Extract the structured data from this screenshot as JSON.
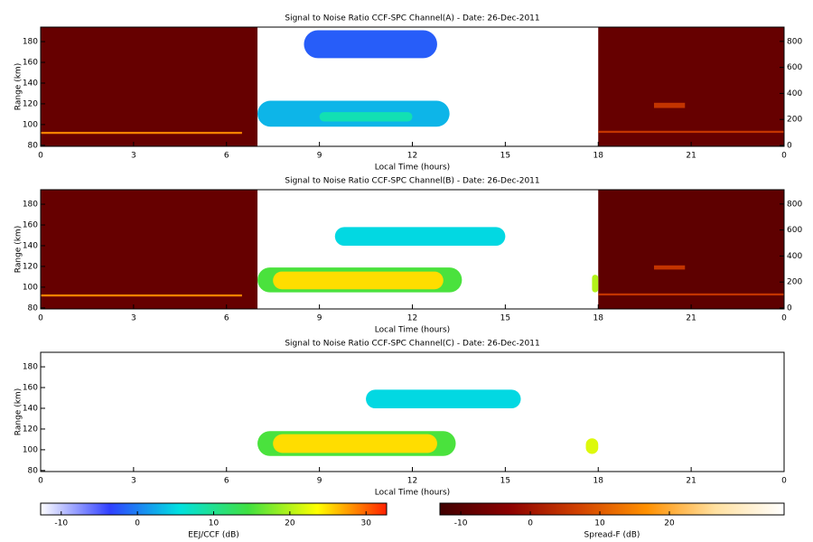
{
  "chart_data": [
    {
      "type": "heatmap",
      "title": "Signal to Noise Ratio CCF-SPC Channel(A) - Date: 26-Dec-2011",
      "x_label": "Local Time (hours)",
      "y_label": "Range (km)",
      "xlim": [
        0,
        24
      ],
      "xticks": [
        0,
        3,
        6,
        9,
        12,
        15,
        18,
        21,
        {
          "value": 24,
          "label": "0"
        }
      ],
      "ylim": [
        79,
        194
      ],
      "yticks": [
        80,
        100,
        120,
        140,
        160,
        180
      ],
      "y2lim": [
        -7,
        910
      ],
      "y2ticks": [
        0,
        200,
        400,
        600,
        800
      ],
      "cells": [
        {
          "x": [
            0,
            7
          ],
          "y": [
            79,
            194
          ],
          "value": -8,
          "scale": "spread_f"
        },
        {
          "x": [
            18,
            24
          ],
          "y": [
            79,
            194
          ],
          "value": -8,
          "scale": "spread_f"
        },
        {
          "x": [
            0,
            6.5
          ],
          "y": [
            91,
            93
          ],
          "value": 15,
          "scale": "spread_f"
        },
        {
          "x": [
            18,
            24
          ],
          "y": [
            92,
            94
          ],
          "value": 5,
          "scale": "spread_f"
        },
        {
          "x": [
            19.8,
            20.8
          ],
          "y": [
            116,
            121
          ],
          "value": 5,
          "scale": "spread_f"
        },
        {
          "x": [
            8.5,
            12.8
          ],
          "y": [
            164,
            191
          ],
          "value": -2,
          "scale": "eej"
        },
        {
          "x": [
            7,
            13.2
          ],
          "y": [
            98,
            123
          ],
          "value": 3,
          "scale": "eej"
        },
        {
          "x": [
            9,
            12
          ],
          "y": [
            103,
            112
          ],
          "value": 8,
          "scale": "eej"
        }
      ]
    },
    {
      "type": "heatmap",
      "title": "Signal to Noise Ratio CCF-SPC Channel(B) - Date: 26-Dec-2011",
      "x_label": "Local Time (hours)",
      "y_label": "Range (km)",
      "xlim": [
        0,
        24
      ],
      "xticks": [
        0,
        3,
        6,
        9,
        12,
        15,
        18,
        21,
        {
          "value": 24,
          "label": "0"
        }
      ],
      "ylim": [
        79,
        194
      ],
      "yticks": [
        80,
        100,
        120,
        140,
        160,
        180
      ],
      "y2lim": [
        -7,
        910
      ],
      "y2ticks": [
        0,
        200,
        400,
        600,
        800
      ],
      "cells": [
        {
          "x": [
            0,
            7
          ],
          "y": [
            79,
            194
          ],
          "value": -8,
          "scale": "spread_f"
        },
        {
          "x": [
            18,
            24
          ],
          "y": [
            79,
            194
          ],
          "value": -9,
          "scale": "spread_f"
        },
        {
          "x": [
            0,
            6.5
          ],
          "y": [
            91,
            93
          ],
          "value": 15,
          "scale": "spread_f"
        },
        {
          "x": [
            18,
            24
          ],
          "y": [
            92,
            94
          ],
          "value": 5,
          "scale": "spread_f"
        },
        {
          "x": [
            19.8,
            20.8
          ],
          "y": [
            117,
            121
          ],
          "value": 5,
          "scale": "spread_f"
        },
        {
          "x": [
            9.5,
            15
          ],
          "y": [
            140,
            158
          ],
          "value": 5,
          "scale": "eej"
        },
        {
          "x": [
            7,
            13.6
          ],
          "y": [
            95,
            119
          ],
          "value": 15,
          "scale": "eej"
        },
        {
          "x": [
            7.5,
            13
          ],
          "y": [
            98,
            115
          ],
          "value": 25,
          "scale": "eej"
        },
        {
          "x": [
            17.8,
            18
          ],
          "y": [
            95,
            112
          ],
          "value": 20,
          "scale": "eej"
        }
      ]
    },
    {
      "type": "heatmap",
      "title": "Signal to Noise Ratio CCF-SPC Channel(C) - Date: 26-Dec-2011",
      "x_label": "Local Time (hours)",
      "y_label": "Range (km)",
      "xlim": [
        0,
        24
      ],
      "xticks": [
        0,
        3,
        6,
        9,
        12,
        15,
        18,
        21,
        {
          "value": 24,
          "label": "0"
        }
      ],
      "ylim": [
        79,
        194
      ],
      "yticks": [
        80,
        100,
        120,
        140,
        160,
        180
      ],
      "cells": [
        {
          "x": [
            10.5,
            15.5
          ],
          "y": [
            140,
            158
          ],
          "value": 5,
          "scale": "eej"
        },
        {
          "x": [
            7,
            13.4
          ],
          "y": [
            94,
            118
          ],
          "value": 15,
          "scale": "eej"
        },
        {
          "x": [
            7.5,
            12.8
          ],
          "y": [
            97,
            115
          ],
          "value": 25,
          "scale": "eej"
        },
        {
          "x": [
            17.6,
            18
          ],
          "y": [
            96,
            111
          ],
          "value": 22,
          "scale": "eej"
        }
      ]
    }
  ],
  "colorbars": {
    "eej": {
      "label": "EEJ/CCF (dB)",
      "lim": [
        -12.7,
        32.7
      ],
      "ticks": [
        -10,
        0,
        10,
        20,
        30
      ],
      "colors": [
        "#ffffff",
        "#3040ff",
        "#00e0e0",
        "#40e040",
        "#ffff00",
        "#ff2000"
      ]
    },
    "spread_f": {
      "label": "Spread-F (dB)",
      "lim": [
        -13,
        36.5
      ],
      "ticks": [
        -10,
        0,
        10,
        20
      ],
      "colors": [
        "#400000",
        "#8b0000",
        "#d04000",
        "#ff9000",
        "#ffe0a0",
        "#ffffff"
      ]
    }
  }
}
